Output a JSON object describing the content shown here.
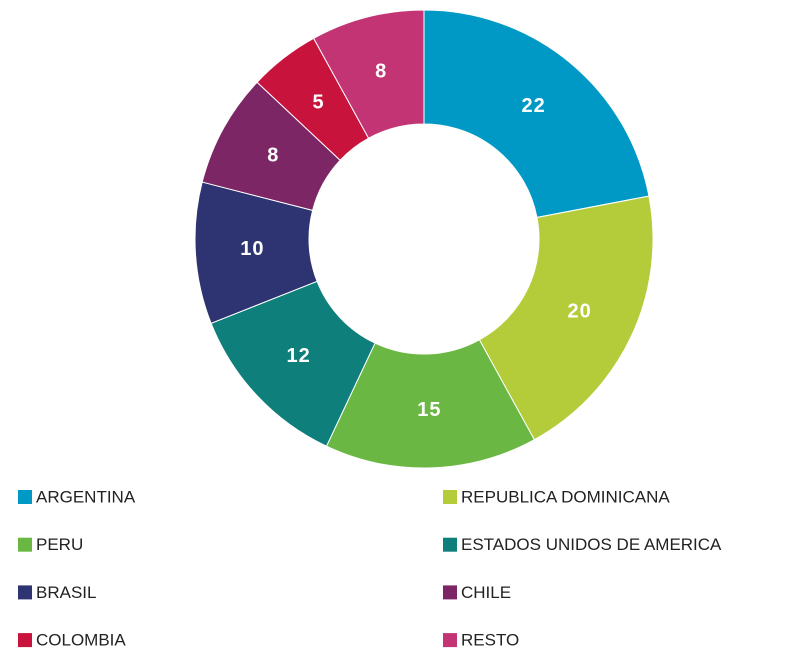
{
  "chart_data": {
    "type": "donut",
    "categories": [
      "ARGENTINA",
      "REPUBLICA DOMINICANA",
      "PERU",
      "ESTADOS UNIDOS DE AMERICA",
      "BRASIL",
      "CHILE",
      "COLOMBIA",
      "RESTO"
    ],
    "values": [
      22,
      20,
      15,
      12,
      10,
      8,
      5,
      8
    ],
    "colors": [
      "#0099c6",
      "#b4cc3a",
      "#6ab843",
      "#0f7f7b",
      "#2e3371",
      "#7d2665",
      "#c8143c",
      "#c33474"
    ],
    "legend": "bottom"
  }
}
